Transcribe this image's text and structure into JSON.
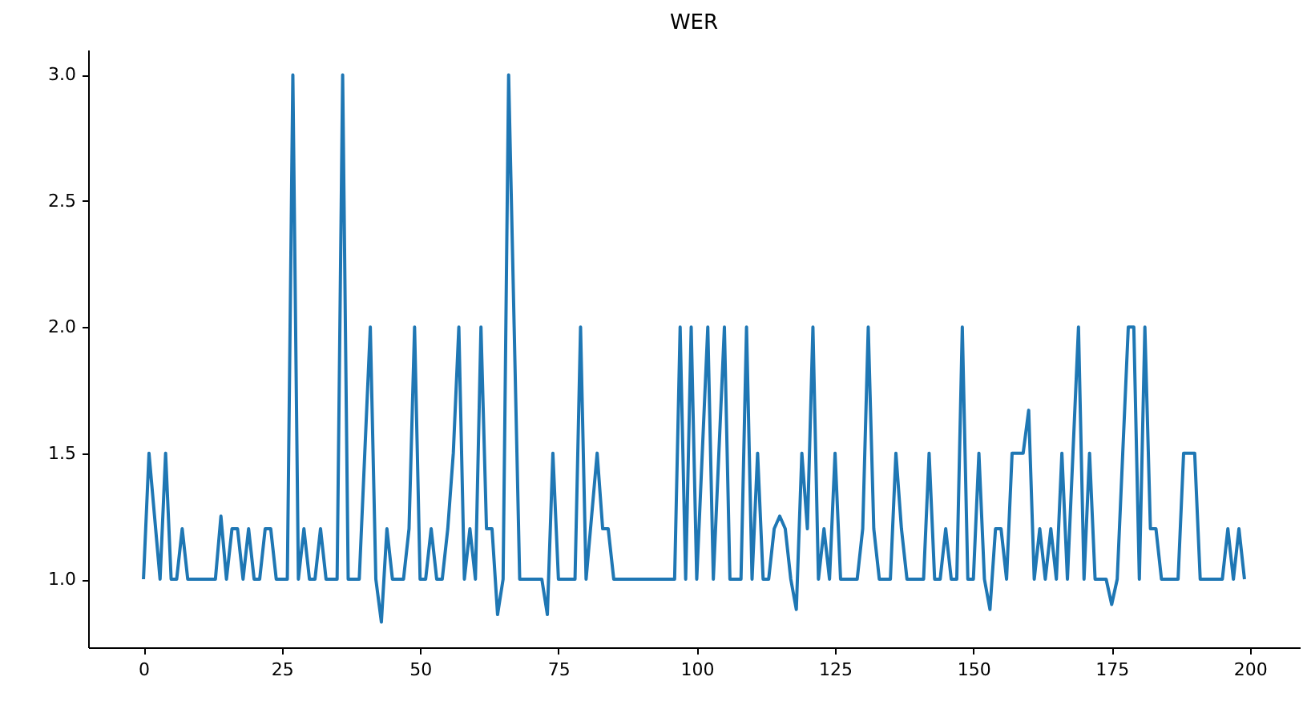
{
  "chart_data": {
    "type": "line",
    "title": "WER",
    "x": [
      0,
      1,
      2,
      3,
      4,
      5,
      6,
      7,
      8,
      9,
      10,
      11,
      12,
      13,
      14,
      15,
      16,
      17,
      18,
      19,
      20,
      21,
      22,
      23,
      24,
      25,
      26,
      27,
      28,
      29,
      30,
      31,
      32,
      33,
      34,
      35,
      36,
      37,
      38,
      39,
      40,
      41,
      42,
      43,
      44,
      45,
      46,
      47,
      48,
      49,
      50,
      51,
      52,
      53,
      54,
      55,
      56,
      57,
      58,
      59,
      60,
      61,
      62,
      63,
      64,
      65,
      66,
      67,
      68,
      69,
      70,
      71,
      72,
      73,
      74,
      75,
      76,
      77,
      78,
      79,
      80,
      81,
      82,
      83,
      84,
      85,
      86,
      87,
      88,
      89,
      90,
      91,
      92,
      93,
      94,
      95,
      96,
      97,
      98,
      99,
      100,
      101,
      102,
      103,
      104,
      105,
      106,
      107,
      108,
      109,
      110,
      111,
      112,
      113,
      114,
      115,
      116,
      117,
      118,
      119,
      120,
      121,
      122,
      123,
      124,
      125,
      126,
      127,
      128,
      129,
      130,
      131,
      132,
      133,
      134,
      135,
      136,
      137,
      138,
      139,
      140,
      141,
      142,
      143,
      144,
      145,
      146,
      147,
      148,
      149,
      150,
      151,
      152,
      153,
      154,
      155,
      156,
      157,
      158,
      159,
      160,
      161,
      162,
      163,
      164,
      165,
      166,
      167,
      168,
      169,
      170,
      171,
      172,
      173,
      174,
      175,
      176,
      177,
      178,
      179,
      180,
      181,
      182,
      183,
      184,
      185,
      186,
      187,
      188,
      189,
      190,
      191,
      192,
      193,
      194,
      195,
      196,
      197,
      198,
      199
    ],
    "series": [
      {
        "color": "#1f77b4",
        "values": [
          1.0,
          1.5,
          1.25,
          1.0,
          1.5,
          1.0,
          1.0,
          1.2,
          1.0,
          1.0,
          1.0,
          1.0,
          1.0,
          1.0,
          1.25,
          1.0,
          1.2,
          1.2,
          1.0,
          1.2,
          1.0,
          1.0,
          1.2,
          1.2,
          1.0,
          1.0,
          1.0,
          3.0,
          1.0,
          1.2,
          1.0,
          1.0,
          1.2,
          1.0,
          1.0,
          1.0,
          3.0,
          1.0,
          1.0,
          1.0,
          1.5,
          2.0,
          1.0,
          0.83,
          1.2,
          1.0,
          1.0,
          1.0,
          1.2,
          2.0,
          1.0,
          1.0,
          1.2,
          1.0,
          1.0,
          1.2,
          1.5,
          2.0,
          1.0,
          1.2,
          1.0,
          2.0,
          1.2,
          1.2,
          0.86,
          1.0,
          3.0,
          2.0,
          1.0,
          1.0,
          1.0,
          1.0,
          1.0,
          0.86,
          1.5,
          1.0,
          1.0,
          1.0,
          1.0,
          2.0,
          1.0,
          1.25,
          1.5,
          1.2,
          1.2,
          1.0,
          1.0,
          1.0,
          1.0,
          1.0,
          1.0,
          1.0,
          1.0,
          1.0,
          1.0,
          1.0,
          1.0,
          2.0,
          1.0,
          2.0,
          1.0,
          1.5,
          2.0,
          1.0,
          1.5,
          2.0,
          1.0,
          1.0,
          1.0,
          2.0,
          1.0,
          1.5,
          1.0,
          1.0,
          1.2,
          1.25,
          1.2,
          1.0,
          0.88,
          1.5,
          1.2,
          2.0,
          1.0,
          1.2,
          1.0,
          1.5,
          1.0,
          1.0,
          1.0,
          1.0,
          1.2,
          2.0,
          1.2,
          1.0,
          1.0,
          1.0,
          1.5,
          1.2,
          1.0,
          1.0,
          1.0,
          1.0,
          1.5,
          1.0,
          1.0,
          1.2,
          1.0,
          1.0,
          2.0,
          1.0,
          1.0,
          1.5,
          1.0,
          0.88,
          1.2,
          1.2,
          1.0,
          1.5,
          1.5,
          1.5,
          1.67,
          1.0,
          1.2,
          1.0,
          1.2,
          1.0,
          1.5,
          1.0,
          1.5,
          2.0,
          1.0,
          1.5,
          1.0,
          1.0,
          1.0,
          0.9,
          1.0,
          1.5,
          2.0,
          2.0,
          1.0,
          2.0,
          1.2,
          1.2,
          1.0,
          1.0,
          1.0,
          1.0,
          1.5,
          1.5,
          1.5,
          1.0,
          1.0,
          1.0,
          1.0,
          1.0,
          1.2,
          1.0,
          1.2,
          1.0
        ]
      }
    ],
    "xlim": [
      -10,
      209
    ],
    "xticks": [
      0,
      25,
      50,
      75,
      100,
      125,
      150,
      175,
      200
    ],
    "ylim": [
      0.73,
      3.1
    ],
    "yticks": [
      {
        "value": 1,
        "label": "1.0"
      },
      {
        "value": 1.5,
        "label": "1.5"
      },
      {
        "value": 2,
        "label": "2.0"
      },
      {
        "value": 2.5,
        "label": "2.5"
      },
      {
        "value": 3,
        "label": "3.0"
      }
    ],
    "grid": false
  }
}
